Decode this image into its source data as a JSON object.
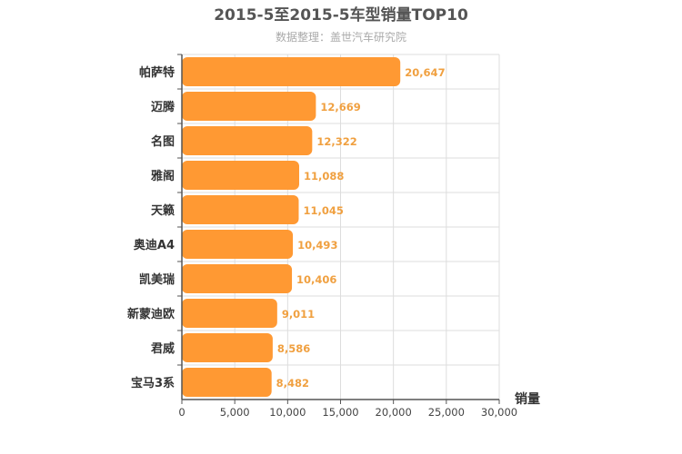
{
  "chart_data": {
    "type": "bar",
    "orientation": "horizontal",
    "title": "2015-5至2015-5车型销量TOP10",
    "subtitle": "数据整理：盖世汽车研究院",
    "xlabel": "销量",
    "ylabel": "",
    "categories": [
      "帕萨特",
      "迈腾",
      "名图",
      "雅阁",
      "天籁",
      "奥迪A4",
      "凯美瑞",
      "新蒙迪欧",
      "君威",
      "宝马3系"
    ],
    "values": [
      20647,
      12669,
      12322,
      11088,
      11045,
      10493,
      10406,
      9011,
      8586,
      8482
    ],
    "value_labels": [
      "20,647",
      "12,669",
      "12,322",
      "11,088",
      "11,045",
      "10,493",
      "10,406",
      "9,011",
      "8,586",
      "8,482"
    ],
    "xlim": [
      0,
      30000
    ],
    "x_ticks": [
      0,
      5000,
      10000,
      15000,
      20000,
      25000,
      30000
    ],
    "x_tick_labels": [
      "0",
      "5,000",
      "10,000",
      "15,000",
      "20,000",
      "25,000",
      "30,000"
    ],
    "grid": true,
    "legend": "none",
    "colors": {
      "bar": "#ff9933",
      "data_label": "#f0a040",
      "grid": "#dddddd",
      "axis": "#555555"
    }
  }
}
